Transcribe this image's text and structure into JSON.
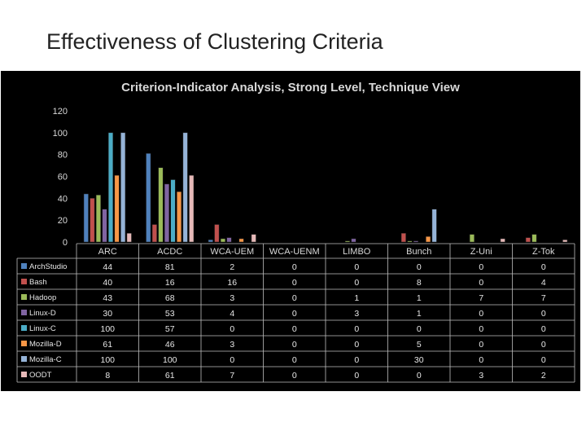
{
  "slide": {
    "title": "Effectiveness of Clustering Criteria"
  },
  "chart_data": {
    "type": "bar",
    "title": "Criterion-Indicator Analysis, Strong Level, Technique View",
    "categories": [
      "ARC",
      "ACDC",
      "WCA-UEM",
      "WCA-UENM",
      "LIMBO",
      "Bunch",
      "Z-Uni",
      "Z-Tok"
    ],
    "ylim": [
      0,
      120
    ],
    "yticks": [
      0,
      20,
      40,
      60,
      80,
      100,
      120
    ],
    "grid": false,
    "legend": "data-table",
    "series": [
      {
        "name": "ArchStudio",
        "color": "#4f81bd",
        "values": [
          44,
          81,
          2,
          0,
          0,
          0,
          0,
          0
        ]
      },
      {
        "name": "Bash",
        "color": "#c0504d",
        "values": [
          40,
          16,
          16,
          0,
          0,
          8,
          0,
          4
        ]
      },
      {
        "name": "Hadoop",
        "color": "#9bbb59",
        "values": [
          43,
          68,
          3,
          0,
          1,
          1,
          7,
          7
        ]
      },
      {
        "name": "Linux-D",
        "color": "#8064a2",
        "values": [
          30,
          53,
          4,
          0,
          3,
          1,
          0,
          0
        ]
      },
      {
        "name": "Linux-C",
        "color": "#4bacc6",
        "values": [
          100,
          57,
          0,
          0,
          0,
          0,
          0,
          0
        ]
      },
      {
        "name": "Mozilla-D",
        "color": "#f79646",
        "values": [
          61,
          46,
          3,
          0,
          0,
          5,
          0,
          0
        ]
      },
      {
        "name": "Mozilla-C",
        "color": "#95b3d7",
        "values": [
          100,
          100,
          0,
          0,
          0,
          30,
          0,
          0
        ]
      },
      {
        "name": "OODT",
        "color": "#e6b9b8",
        "values": [
          8,
          61,
          7,
          0,
          0,
          0,
          3,
          2
        ]
      }
    ]
  }
}
